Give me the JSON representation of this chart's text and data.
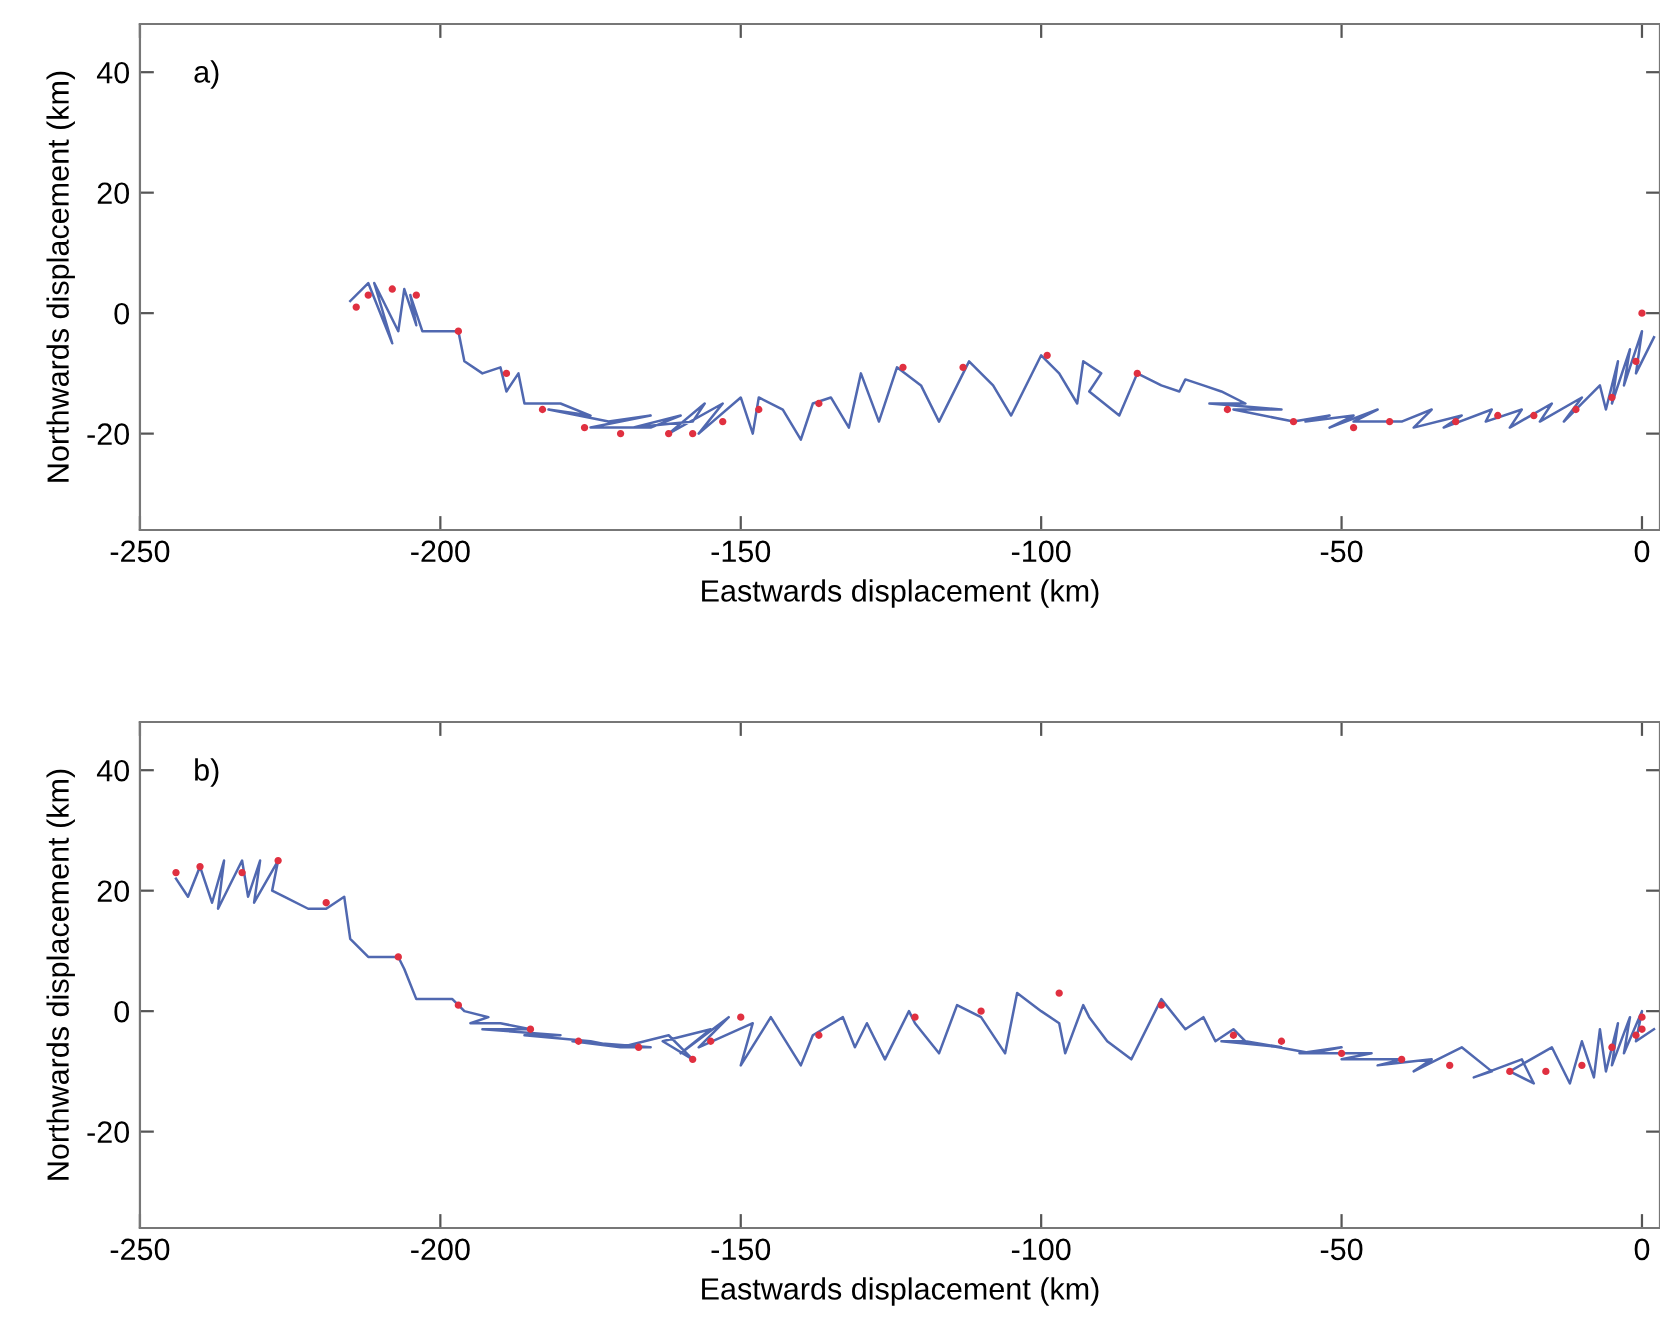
{
  "chart_data": [
    {
      "type": "line",
      "xlabel": "Eastwards displacement (km)",
      "ylabel": "Northwards displacement (km)",
      "annotations": [
        "a)"
      ],
      "xlim": [
        -250,
        3
      ],
      "ylim": [
        -36,
        48
      ],
      "xticks": [
        -250,
        -200,
        -150,
        -100,
        -50,
        0
      ],
      "yticks": [
        -20,
        0,
        20,
        40
      ],
      "grid": false,
      "legend": false,
      "series": [
        {
          "marker": "none",
          "line_style": "solid",
          "color": "#5068b0",
          "x": [
            -215,
            -212,
            -208,
            -211,
            -207,
            -206,
            -204,
            -205,
            -203,
            -200,
            -197,
            -196,
            -193,
            -190,
            -189,
            -187,
            -186,
            -180,
            -175,
            -182,
            -172,
            -165,
            -175,
            -165,
            -160,
            -168,
            -158,
            -156,
            -162,
            -153,
            -157,
            -150,
            -148,
            -147,
            -143,
            -140,
            -138,
            -135,
            -132,
            -130,
            -127,
            -124,
            -120,
            -117,
            -112,
            -108,
            -105,
            -100,
            -97,
            -94,
            -93,
            -90,
            -92,
            -87,
            -84,
            -80,
            -77,
            -76,
            -73,
            -70,
            -66,
            -72,
            -60,
            -68,
            -58,
            -52,
            -56,
            -48,
            -52,
            -44,
            -48,
            -40,
            -35,
            -38,
            -30,
            -33,
            -25,
            -26,
            -20,
            -22,
            -15,
            -17,
            -10,
            -13,
            -7,
            -6,
            -4,
            -5,
            -2,
            -3,
            0,
            -1,
            2
          ],
          "values": [
            2,
            5,
            -5,
            5,
            -3,
            4,
            -2,
            3,
            -3,
            -3,
            -3,
            -8,
            -10,
            -9,
            -13,
            -10,
            -15,
            -15,
            -17,
            -16,
            -18,
            -17,
            -19,
            -19,
            -17,
            -19,
            -18,
            -15,
            -20,
            -15,
            -20,
            -14,
            -20,
            -14,
            -16,
            -21,
            -15,
            -14,
            -19,
            -10,
            -18,
            -9,
            -12,
            -18,
            -8,
            -12,
            -17,
            -7,
            -10,
            -15,
            -8,
            -10,
            -13,
            -17,
            -10,
            -12,
            -13,
            -11,
            -12,
            -13,
            -15,
            -15,
            -16,
            -16,
            -18,
            -17,
            -18,
            -17,
            -19,
            -16,
            -18,
            -18,
            -16,
            -19,
            -17,
            -19,
            -16,
            -18,
            -16,
            -19,
            -15,
            -18,
            -14,
            -18,
            -12,
            -16,
            -8,
            -15,
            -6,
            -12,
            -3,
            -10,
            -4
          ]
        },
        {
          "type": "scatter",
          "marker": "circle",
          "color": "#e03040",
          "x": [
            -214,
            -212,
            -208,
            -204,
            -197,
            -189,
            -183,
            -176,
            -170,
            -162,
            -158,
            -153,
            -147,
            -137,
            -123,
            -113,
            -99,
            -84,
            -69,
            -58,
            -48,
            -42,
            -31,
            -24,
            -18,
            -11,
            -5,
            -1,
            0
          ],
          "values": [
            1,
            3,
            4,
            3,
            -3,
            -10,
            -16,
            -19,
            -20,
            -20,
            -20,
            -18,
            -16,
            -15,
            -9,
            -9,
            -7,
            -10,
            -16,
            -18,
            -19,
            -18,
            -18,
            -17,
            -17,
            -16,
            -14,
            -8,
            0
          ]
        }
      ]
    },
    {
      "type": "line",
      "xlabel": "Eastwards displacement (km)",
      "ylabel": "Northwards displacement (km)",
      "annotations": [
        "b)"
      ],
      "xlim": [
        -250,
        3
      ],
      "ylim": [
        -36,
        48
      ],
      "xticks": [
        -250,
        -200,
        -150,
        -100,
        -50,
        0
      ],
      "yticks": [
        -20,
        0,
        20,
        40
      ],
      "grid": false,
      "legend": false,
      "series": [
        {
          "marker": "none",
          "line_style": "solid",
          "color": "#5068b0",
          "x": [
            -244,
            -242,
            -240,
            -238,
            -236,
            -237,
            -233,
            -232,
            -230,
            -231,
            -227,
            -228,
            -226,
            -222,
            -219,
            -216,
            -215,
            -212,
            -207,
            -206,
            -204,
            -198,
            -196,
            -192,
            -195,
            -190,
            -185,
            -193,
            -180,
            -186,
            -175,
            -170,
            -178,
            -165,
            -170,
            -162,
            -158,
            -163,
            -155,
            -160,
            -152,
            -157,
            -148,
            -150,
            -145,
            -140,
            -138,
            -133,
            -131,
            -129,
            -126,
            -122,
            -121,
            -117,
            -114,
            -110,
            -106,
            -104,
            -100,
            -97,
            -96,
            -93,
            -92,
            -89,
            -85,
            -80,
            -76,
            -73,
            -71,
            -68,
            -66,
            -70,
            -60,
            -66,
            -55,
            -50,
            -57,
            -45,
            -50,
            -40,
            -44,
            -35,
            -38,
            -30,
            -25,
            -28,
            -20,
            -18,
            -22,
            -15,
            -12,
            -10,
            -8,
            -7,
            -6,
            -4,
            -5,
            -2,
            -3,
            0,
            -1,
            2
          ],
          "values": [
            22,
            19,
            24,
            18,
            25,
            17,
            25,
            19,
            25,
            18,
            25,
            20,
            19,
            17,
            17,
            19,
            12,
            9,
            9,
            7,
            2,
            2,
            0,
            -1,
            -2,
            -2,
            -3,
            -3,
            -4,
            -4,
            -5,
            -6,
            -5,
            -6,
            -6,
            -4,
            -8,
            -5,
            -3,
            -7,
            -1,
            -6,
            -2,
            -9,
            -1,
            -9,
            -4,
            -1,
            -6,
            -2,
            -8,
            0,
            -2,
            -7,
            1,
            -1,
            -7,
            3,
            0,
            -2,
            -7,
            1,
            -1,
            -5,
            -8,
            2,
            -3,
            -1,
            -5,
            -3,
            -5,
            -5,
            -6,
            -5,
            -7,
            -6,
            -7,
            -7,
            -8,
            -8,
            -9,
            -8,
            -10,
            -6,
            -10,
            -11,
            -8,
            -12,
            -10,
            -6,
            -12,
            -5,
            -11,
            -3,
            -10,
            -2,
            -9,
            -1,
            -7,
            0,
            -5,
            -3
          ]
        },
        {
          "type": "scatter",
          "marker": "circle",
          "color": "#e03040",
          "x": [
            -244,
            -240,
            -233,
            -227,
            -219,
            -207,
            -197,
            -185,
            -177,
            -167,
            -158,
            -155,
            -150,
            -137,
            -121,
            -110,
            -97,
            -80,
            -68,
            -60,
            -50,
            -40,
            -32,
            -22,
            -16,
            -10,
            -5,
            -1,
            0,
            0
          ],
          "values": [
            23,
            24,
            23,
            25,
            18,
            9,
            1,
            -3,
            -5,
            -6,
            -8,
            -5,
            -1,
            -4,
            -1,
            0,
            3,
            1,
            -4,
            -5,
            -7,
            -8,
            -9,
            -10,
            -10,
            -9,
            -6,
            -4,
            -1,
            -3
          ]
        }
      ]
    }
  ]
}
